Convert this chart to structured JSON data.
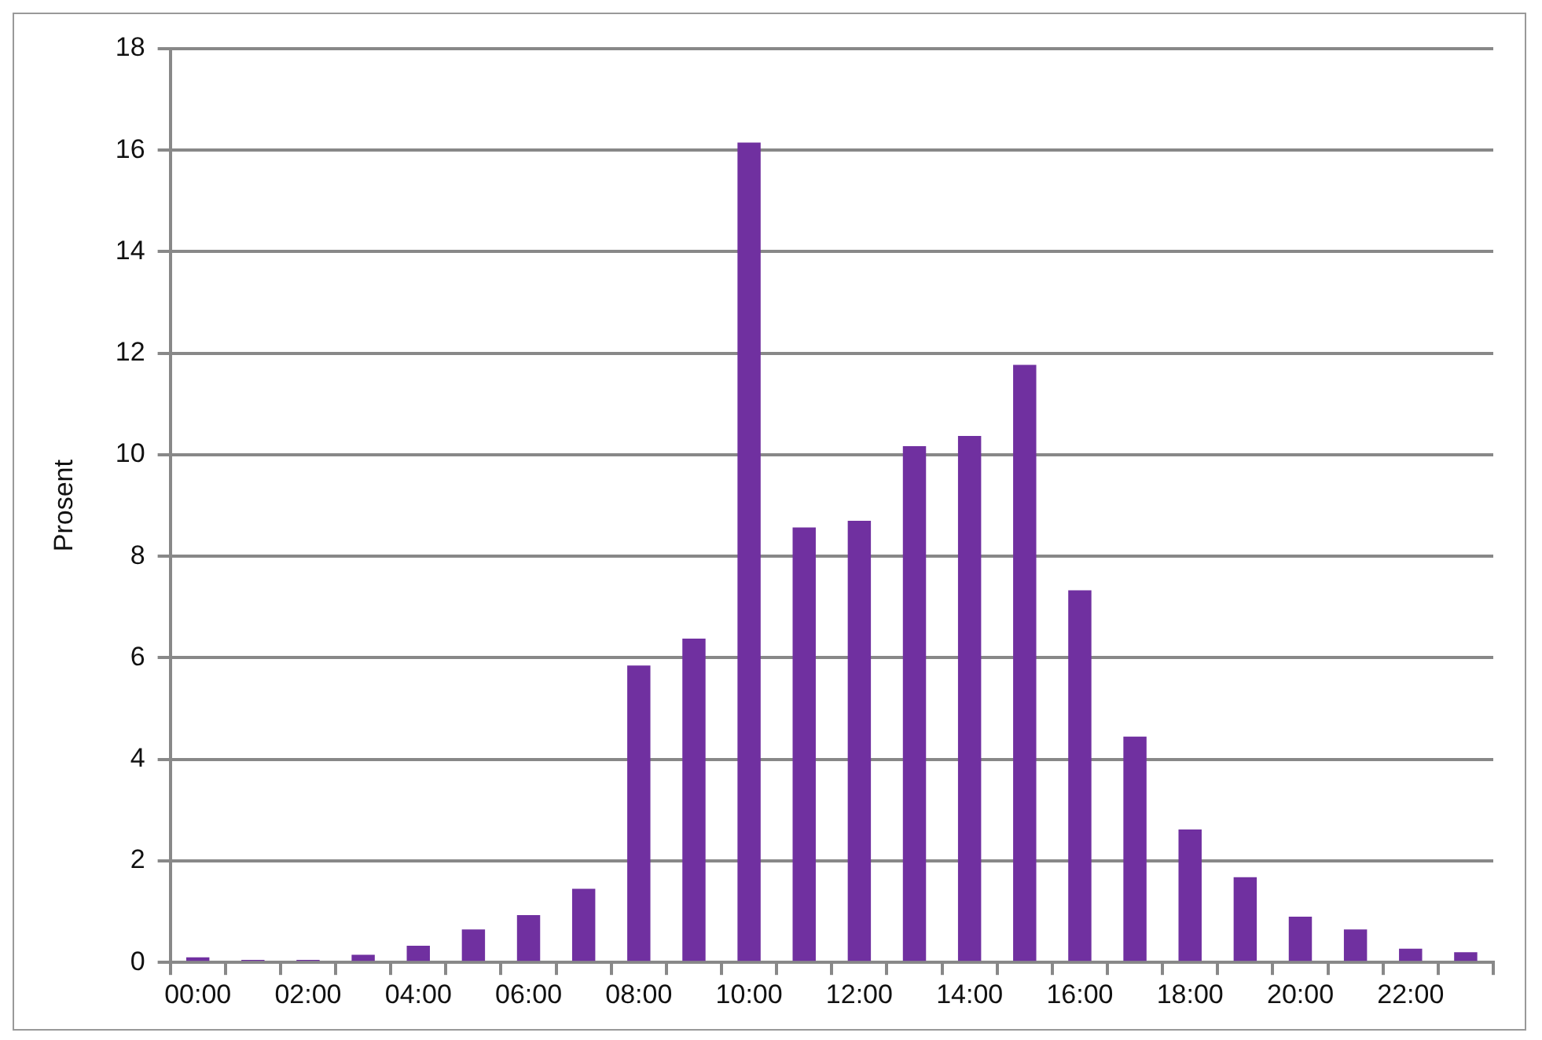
{
  "chart_data": {
    "type": "bar",
    "ylabel": "Prosent",
    "categories": [
      "00:00",
      null,
      "02:00",
      null,
      "04:00",
      null,
      "06:00",
      null,
      "08:00",
      null,
      "10:00",
      null,
      "12:00",
      null,
      "14:00",
      null,
      "16:00",
      null,
      "18:00",
      null,
      "20:00",
      null,
      "22:00",
      null
    ],
    "values": [
      0.1,
      0.05,
      0.05,
      0.15,
      0.33,
      0.65,
      0.93,
      1.45,
      5.85,
      6.38,
      16.15,
      8.57,
      8.7,
      10.17,
      10.37,
      11.77,
      7.33,
      4.45,
      2.62,
      1.68,
      0.9,
      0.65,
      0.27,
      0.2
    ],
    "color": "#7030a0",
    "ylim": [
      0,
      18
    ],
    "yticks": [
      0,
      2,
      4,
      6,
      8,
      10,
      12,
      14,
      16,
      18
    ],
    "grid": "y",
    "legend": false
  }
}
